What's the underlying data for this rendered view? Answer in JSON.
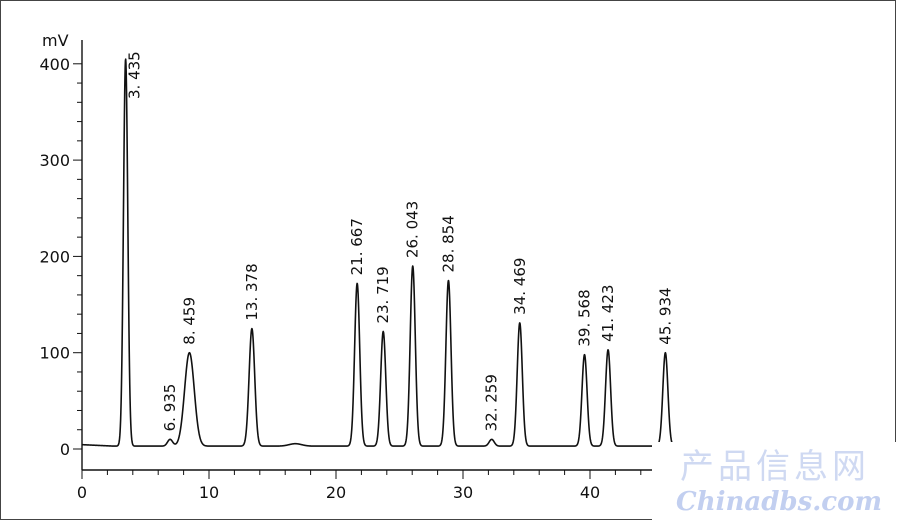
{
  "chart_data": {
    "type": "line",
    "title": "",
    "xlabel": "",
    "ylabel": "mV",
    "xlim": [
      0,
      50
    ],
    "ylim": [
      0,
      400
    ],
    "x_ticks": [
      "0",
      "10",
      "20",
      "30",
      "40"
    ],
    "y_ticks": [
      "0",
      "100",
      "200",
      "300",
      "400"
    ],
    "grid": false,
    "baseline_mV": 3,
    "peaks": [
      {
        "rt": 3.435,
        "label": "3. 435",
        "height_mV": 405
      },
      {
        "rt": 6.935,
        "label": "6. 935",
        "height_mV": 10
      },
      {
        "rt": 8.459,
        "label": "8. 459",
        "height_mV": 100
      },
      {
        "rt": 13.378,
        "label": "13. 378",
        "height_mV": 125
      },
      {
        "rt": 21.667,
        "label": "21. 667",
        "height_mV": 172
      },
      {
        "rt": 23.719,
        "label": "23. 719",
        "height_mV": 122
      },
      {
        "rt": 26.043,
        "label": "26. 043",
        "height_mV": 190
      },
      {
        "rt": 28.854,
        "label": "28. 854",
        "height_mV": 175
      },
      {
        "rt": 32.259,
        "label": "32. 259",
        "height_mV": 10
      },
      {
        "rt": 34.469,
        "label": "34. 469",
        "height_mV": 131
      },
      {
        "rt": 39.568,
        "label": "39. 568",
        "height_mV": 98
      },
      {
        "rt": 41.423,
        "label": "41. 423",
        "height_mV": 103
      },
      {
        "rt": 45.934,
        "label": "45. 934",
        "height_mV": 100
      }
    ]
  },
  "watermark": {
    "cn": "产品信息网",
    "en": "Chinadbs.com"
  }
}
